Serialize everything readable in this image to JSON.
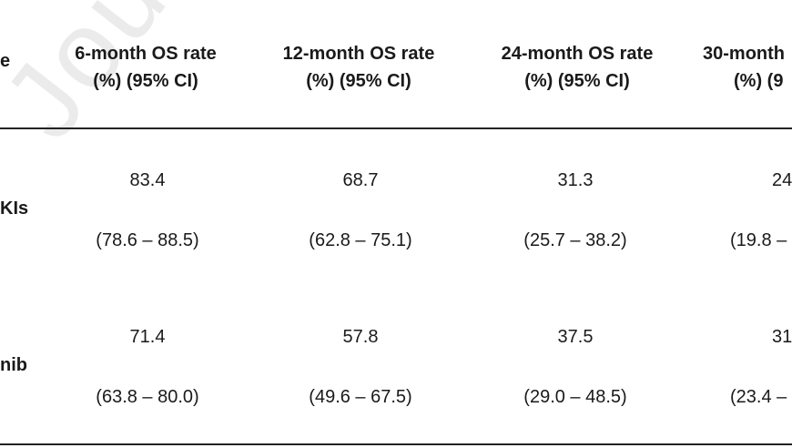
{
  "watermark": "Journ",
  "table": {
    "header_fragment": "e",
    "columns": [
      {
        "line1": "6-month OS rate",
        "line2": "(%) (95% CI)"
      },
      {
        "line1": "12-month OS rate",
        "line2": "(%) (95% CI)"
      },
      {
        "line1": "24-month OS rate",
        "line2": "(%) (95% CI)"
      },
      {
        "line1": "30-month",
        "line2": "(%) (9"
      }
    ],
    "rows": [
      {
        "label_fragment": "KIs",
        "cells": [
          {
            "value": "83.4",
            "ci": "(78.6 – 88.5)"
          },
          {
            "value": "68.7",
            "ci": "(62.8 – 75.1)"
          },
          {
            "value": "31.3",
            "ci": "(25.7 – 38.2)"
          },
          {
            "value": "24",
            "ci": "(19.8 –"
          }
        ]
      },
      {
        "label_fragment": "nib",
        "cells": [
          {
            "value": "71.4",
            "ci": "(63.8 – 80.0)"
          },
          {
            "value": "57.8",
            "ci": "(49.6 – 67.5)"
          },
          {
            "value": "37.5",
            "ci": "(29.0 – 48.5)"
          },
          {
            "value": "31",
            "ci": "(23.4 –"
          }
        ]
      }
    ]
  }
}
